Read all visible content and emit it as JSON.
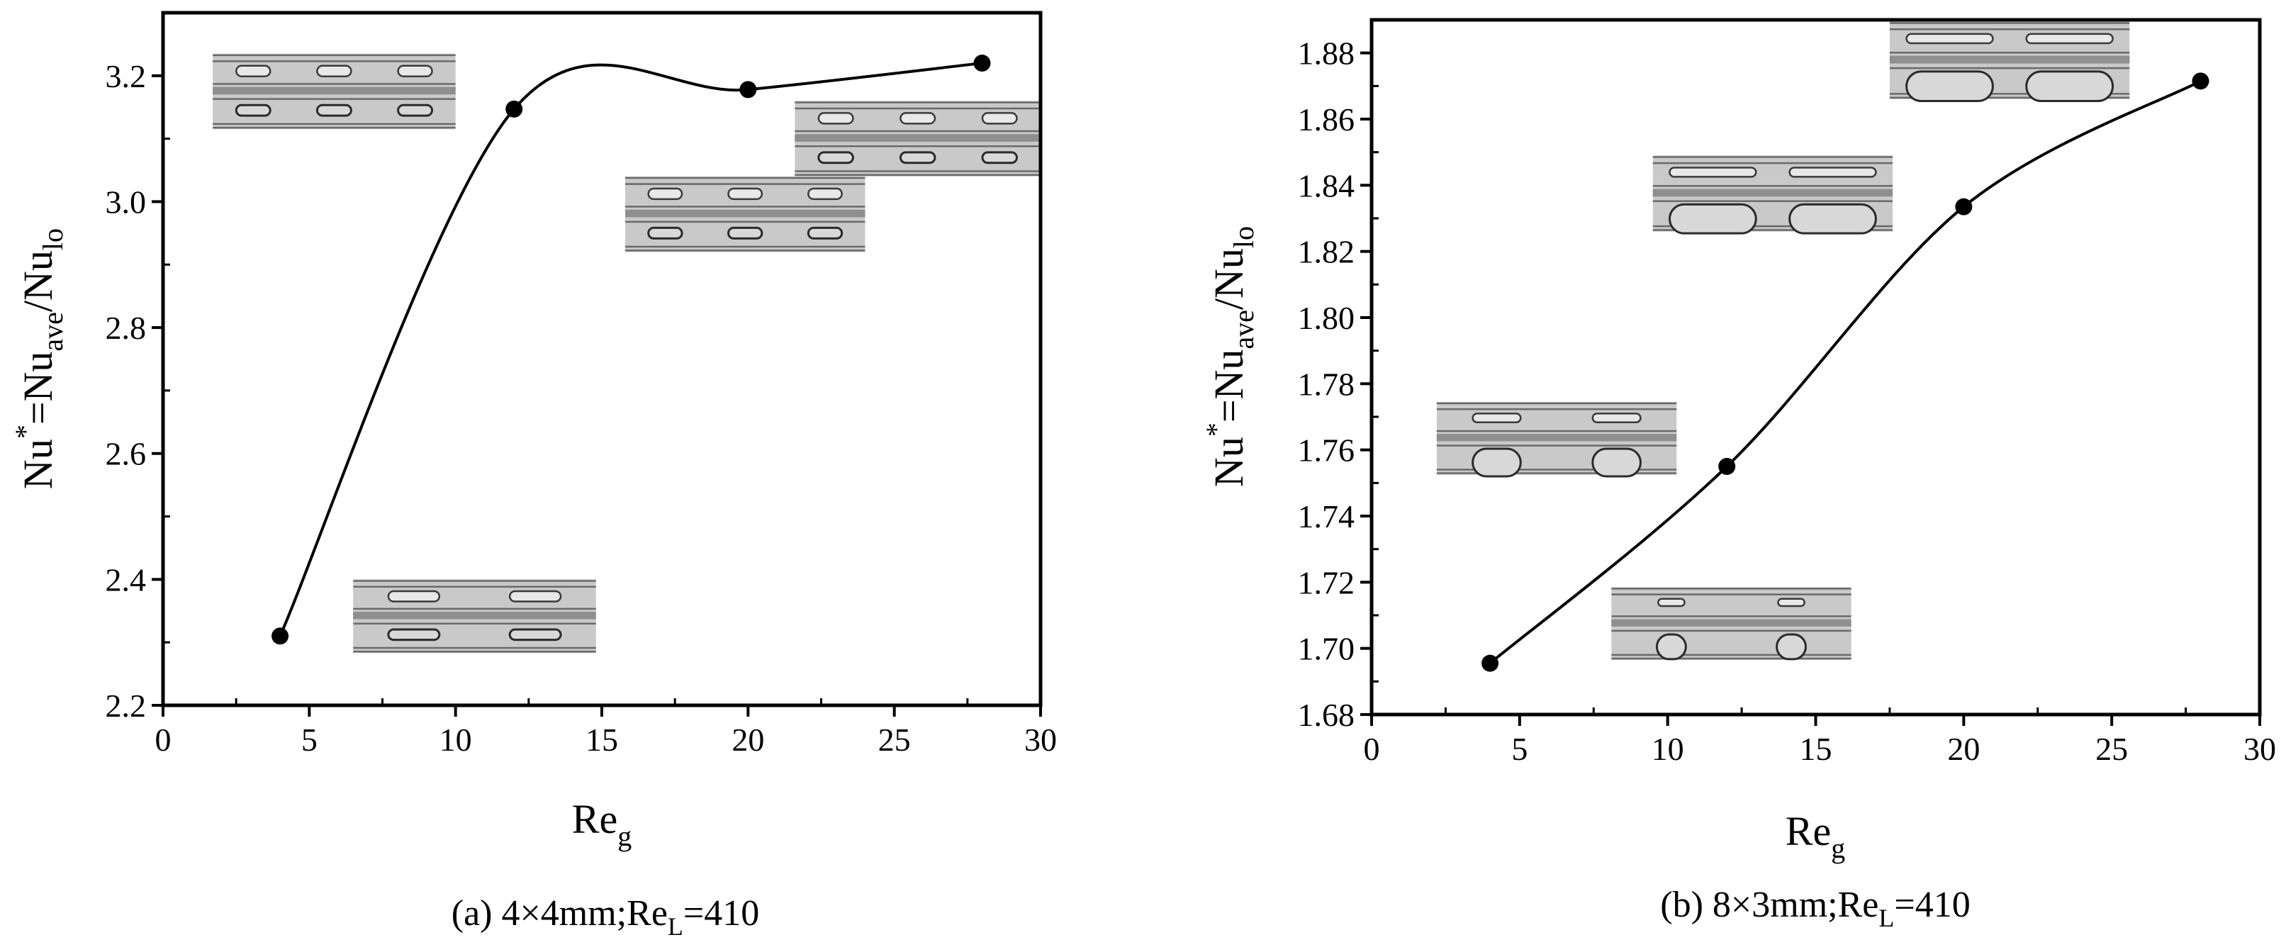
{
  "chart_data": [
    {
      "type": "line",
      "panel": "a",
      "caption": {
        "prefix": "(a) 4×4mm;Re",
        "sub": "L",
        "suffix": "=410"
      },
      "xlabel": {
        "main": "Re",
        "sub": "g"
      },
      "ylabel": {
        "p1": "Nu",
        "sup": "*",
        "p2": "=Nu",
        "sub1": "ave",
        "p3": "/Nu",
        "sub2": "lo"
      },
      "xlim": [
        0,
        30
      ],
      "ylim": [
        2.2,
        3.3
      ],
      "xticks": [
        0,
        5,
        10,
        15,
        20,
        25,
        30
      ],
      "yticks": [
        2.2,
        2.4,
        2.6,
        2.8,
        3.0,
        3.2
      ],
      "xtick_labels": [
        "0",
        "5",
        "10",
        "15",
        "20",
        "25",
        "30"
      ],
      "ytick_labels": [
        "2.2",
        "2.4",
        "2.6",
        "2.8",
        "3.0",
        "3.2"
      ],
      "grid": false,
      "legend": "none",
      "series": [
        {
          "x": [
            4,
            12,
            20,
            28
          ],
          "y": [
            2.31,
            3.147,
            3.178,
            3.22
          ]
        }
      ],
      "insets": [
        {
          "x": [
            1.7,
            10.0
          ],
          "y": [
            3.235,
            3.115
          ],
          "slugs": 3,
          "style": "square"
        },
        {
          "x": [
            6.5,
            14.8
          ],
          "y": [
            2.4,
            2.283
          ],
          "slugs": 2,
          "style": "square"
        },
        {
          "x": [
            15.8,
            24.0
          ],
          "y": [
            3.04,
            2.92
          ],
          "slugs": 3,
          "style": "square"
        },
        {
          "x": [
            21.6,
            30.0
          ],
          "y": [
            3.16,
            3.04
          ],
          "slugs": 3,
          "style": "square"
        }
      ]
    },
    {
      "type": "line",
      "panel": "b",
      "caption": {
        "prefix": "(b) 8×3mm;Re",
        "sub": "L",
        "suffix": "=410"
      },
      "xlabel": {
        "main": "Re",
        "sub": "g"
      },
      "ylabel": {
        "p1": "Nu",
        "sup": "*",
        "p2": "=Nu",
        "sub1": "ave",
        "p3": "/Nu",
        "sub2": "lo"
      },
      "xlim": [
        0,
        30
      ],
      "ylim": [
        1.68,
        1.89
      ],
      "xticks": [
        0,
        5,
        10,
        15,
        20,
        25,
        30
      ],
      "yticks": [
        1.68,
        1.7,
        1.72,
        1.74,
        1.76,
        1.78,
        1.8,
        1.82,
        1.84,
        1.86,
        1.88
      ],
      "xtick_labels": [
        "0",
        "5",
        "10",
        "15",
        "20",
        "25",
        "30"
      ],
      "ytick_labels": [
        "1.68",
        "1.70",
        "1.72",
        "1.74",
        "1.76",
        "1.78",
        "1.80",
        "1.82",
        "1.84",
        "1.86",
        "1.88"
      ],
      "grid": false,
      "legend": "none",
      "series": [
        {
          "x": [
            4,
            12,
            20,
            28
          ],
          "y": [
            1.6955,
            1.755,
            1.8335,
            1.8715
          ]
        }
      ],
      "insets": [
        {
          "x": [
            17.5,
            25.6
          ],
          "y": [
            1.8895,
            1.866
          ],
          "slugs": 2,
          "style": "wide"
        },
        {
          "x": [
            9.5,
            17.6
          ],
          "y": [
            1.849,
            1.826
          ],
          "slugs": 2,
          "style": "wide"
        },
        {
          "x": [
            2.2,
            10.3
          ],
          "y": [
            1.7745,
            1.7525
          ],
          "slugs": 2,
          "style": "round"
        },
        {
          "x": [
            8.1,
            16.2
          ],
          "y": [
            1.7185,
            1.6965
          ],
          "slugs": 2,
          "style": "small"
        }
      ]
    }
  ]
}
